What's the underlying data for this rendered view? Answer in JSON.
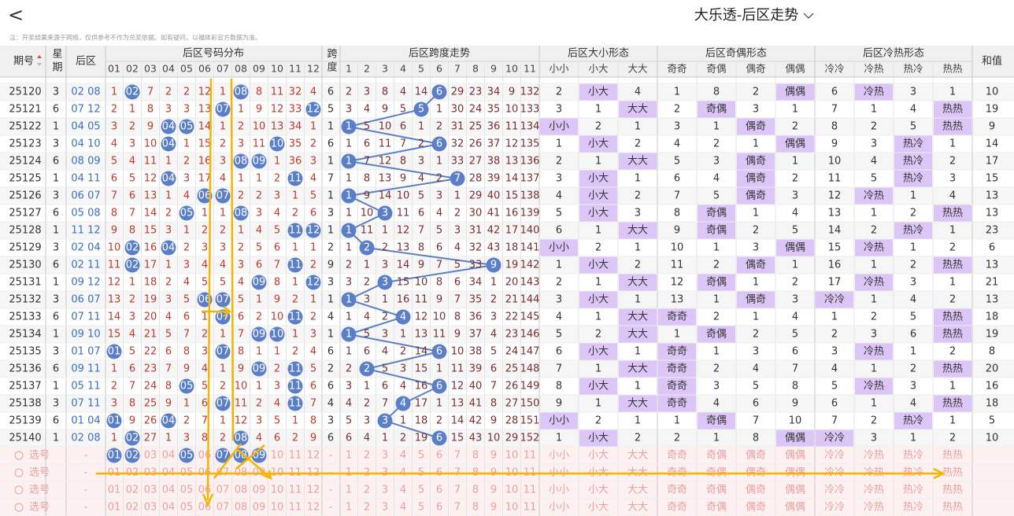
{
  "header": {
    "back": "<",
    "title": "大乐透-后区走势",
    "note": "注：开奖结果来源于网络，仅供参考不作为兑奖依据。如有疑问，以福体彩官方数据为准。"
  },
  "table": {
    "columns": {
      "issue": "期号",
      "weekday": "星期",
      "back": "后区",
      "dist": "后区号码分布",
      "span": "跨度",
      "span_trend": "后区跨度走势",
      "size": "后区大小形态",
      "oe": "后区奇偶形态",
      "ch": "后区冷热形态",
      "sum": "和值"
    },
    "num_labels": [
      "01",
      "02",
      "03",
      "04",
      "05",
      "06",
      "07",
      "08",
      "09",
      "10",
      "11",
      "12"
    ],
    "span_labels": [
      "1",
      "2",
      "3",
      "4",
      "5",
      "6",
      "7",
      "8",
      "9",
      "10",
      "11"
    ],
    "size_labels": [
      "小小",
      "小大",
      "大大"
    ],
    "oe_labels": [
      "奇奇",
      "奇偶",
      "偶奇",
      "偶偶"
    ],
    "ch_labels": [
      "冷冷",
      "冷热",
      "热冷",
      "热热"
    ],
    "rows": [
      {
        "issue": "25120",
        "weekday": "3",
        "back": "02 08",
        "nums": [
          "1",
          "02",
          "7",
          "2",
          "2",
          "12",
          "1",
          "08",
          "8",
          "11",
          "32",
          "4"
        ],
        "span": "6",
        "spans": [
          "2",
          "3",
          "8",
          "4",
          "14",
          "6",
          "29",
          "23",
          "34",
          "9",
          "132"
        ],
        "size": [
          "2",
          "小大",
          "4"
        ],
        "oe": [
          "1",
          "8",
          "2",
          "偶偶"
        ],
        "ch": [
          "6",
          "冷热",
          "3",
          "1"
        ],
        "sum": "10"
      },
      {
        "issue": "25121",
        "weekday": "6",
        "back": "07 12",
        "nums": [
          "2",
          "1",
          "8",
          "3",
          "3",
          "13",
          "07",
          "1",
          "9",
          "12",
          "33",
          "12"
        ],
        "span": "5",
        "spans": [
          "3",
          "4",
          "9",
          "5",
          "5",
          "1",
          "30",
          "24",
          "35",
          "10",
          "133"
        ],
        "size": [
          "3",
          "1",
          "大大"
        ],
        "oe": [
          "2",
          "奇偶",
          "3",
          "1"
        ],
        "ch": [
          "7",
          "1",
          "4",
          "热热"
        ],
        "sum": "19"
      },
      {
        "issue": "25122",
        "weekday": "1",
        "back": "04 05",
        "nums": [
          "3",
          "2",
          "9",
          "04",
          "05",
          "14",
          "1",
          "2",
          "10",
          "13",
          "34",
          "1"
        ],
        "span": "1",
        "spans": [
          "1",
          "5",
          "10",
          "6",
          "1",
          "2",
          "31",
          "25",
          "36",
          "11",
          "134"
        ],
        "size": [
          "小小",
          "2",
          "1"
        ],
        "oe": [
          "3",
          "1",
          "偶奇",
          "2"
        ],
        "ch": [
          "8",
          "2",
          "5",
          "热热"
        ],
        "sum": "9"
      },
      {
        "issue": "25123",
        "weekday": "3",
        "back": "04 10",
        "nums": [
          "4",
          "3",
          "10",
          "04",
          "1",
          "15",
          "2",
          "3",
          "11",
          "10",
          "35",
          "2"
        ],
        "span": "6",
        "spans": [
          "1",
          "6",
          "11",
          "7",
          "2",
          "6",
          "32",
          "26",
          "37",
          "12",
          "135"
        ],
        "size": [
          "1",
          "小大",
          "2"
        ],
        "oe": [
          "4",
          "2",
          "1",
          "偶偶"
        ],
        "ch": [
          "9",
          "3",
          "热冷",
          "1"
        ],
        "sum": "14"
      },
      {
        "issue": "25124",
        "weekday": "6",
        "back": "08 09",
        "nums": [
          "5",
          "4",
          "11",
          "1",
          "2",
          "16",
          "3",
          "08",
          "09",
          "1",
          "36",
          "3"
        ],
        "span": "1",
        "spans": [
          "1",
          "7",
          "12",
          "8",
          "3",
          "1",
          "33",
          "27",
          "38",
          "13",
          "136"
        ],
        "size": [
          "2",
          "1",
          "大大"
        ],
        "oe": [
          "5",
          "3",
          "偶奇",
          "1"
        ],
        "ch": [
          "10",
          "4",
          "热冷",
          "2"
        ],
        "sum": "17"
      },
      {
        "issue": "25125",
        "weekday": "1",
        "back": "04 11",
        "nums": [
          "6",
          "5",
          "12",
          "04",
          "3",
          "17",
          "4",
          "1",
          "1",
          "2",
          "11",
          "4"
        ],
        "span": "7",
        "spans": [
          "1",
          "8",
          "13",
          "9",
          "4",
          "2",
          "7",
          "28",
          "39",
          "14",
          "137"
        ],
        "size": [
          "3",
          "小大",
          "1"
        ],
        "oe": [
          "6",
          "4",
          "偶奇",
          "2"
        ],
        "ch": [
          "11",
          "5",
          "热冷",
          "3"
        ],
        "sum": "15"
      },
      {
        "issue": "25126",
        "weekday": "3",
        "back": "06 07",
        "nums": [
          "7",
          "6",
          "13",
          "1",
          "4",
          "06",
          "07",
          "2",
          "2",
          "3",
          "1",
          "5"
        ],
        "span": "1",
        "spans": [
          "1",
          "9",
          "14",
          "10",
          "5",
          "3",
          "1",
          "29",
          "40",
          "15",
          "138"
        ],
        "size": [
          "4",
          "小大",
          "2"
        ],
        "oe": [
          "7",
          "5",
          "偶奇",
          "3"
        ],
        "ch": [
          "12",
          "冷热",
          "1",
          "4"
        ],
        "sum": "13"
      },
      {
        "issue": "25127",
        "weekday": "6",
        "back": "05 08",
        "nums": [
          "8",
          "7",
          "14",
          "2",
          "05",
          "1",
          "1",
          "08",
          "3",
          "4",
          "2",
          "6"
        ],
        "span": "3",
        "spans": [
          "1",
          "10",
          "3",
          "11",
          "6",
          "4",
          "2",
          "30",
          "41",
          "16",
          "139"
        ],
        "size": [
          "5",
          "小大",
          "3"
        ],
        "oe": [
          "8",
          "奇偶",
          "1",
          "4"
        ],
        "ch": [
          "13",
          "1",
          "2",
          "热热"
        ],
        "sum": "13"
      },
      {
        "issue": "25128",
        "weekday": "1",
        "back": "11 12",
        "nums": [
          "9",
          "8",
          "15",
          "3",
          "1",
          "2",
          "2",
          "1",
          "4",
          "5",
          "11",
          "12"
        ],
        "span": "1",
        "spans": [
          "1",
          "11",
          "1",
          "12",
          "7",
          "5",
          "3",
          "31",
          "42",
          "17",
          "140"
        ],
        "size": [
          "6",
          "1",
          "大大"
        ],
        "oe": [
          "9",
          "奇偶",
          "2",
          "5"
        ],
        "ch": [
          "14",
          "2",
          "热冷",
          "1"
        ],
        "sum": "23"
      },
      {
        "issue": "25129",
        "weekday": "3",
        "back": "02 04",
        "nums": [
          "10",
          "02",
          "16",
          "04",
          "2",
          "3",
          "3",
          "2",
          "5",
          "6",
          "1",
          "1"
        ],
        "span": "2",
        "spans": [
          "1",
          "2",
          "2",
          "13",
          "8",
          "6",
          "4",
          "32",
          "43",
          "18",
          "141"
        ],
        "size": [
          "小小",
          "2",
          "1"
        ],
        "oe": [
          "10",
          "1",
          "3",
          "偶偶"
        ],
        "ch": [
          "15",
          "冷热",
          "1",
          "2"
        ],
        "sum": "6"
      },
      {
        "issue": "25130",
        "weekday": "6",
        "back": "02 11",
        "nums": [
          "11",
          "02",
          "17",
          "1",
          "3",
          "4",
          "4",
          "3",
          "6",
          "7",
          "11",
          "2"
        ],
        "span": "9",
        "spans": [
          "2",
          "1",
          "3",
          "14",
          "9",
          "7",
          "5",
          "33",
          "9",
          "19",
          "142"
        ],
        "size": [
          "1",
          "小大",
          "2"
        ],
        "oe": [
          "11",
          "2",
          "偶奇",
          "1"
        ],
        "ch": [
          "16",
          "1",
          "2",
          "热热"
        ],
        "sum": "13"
      },
      {
        "issue": "25131",
        "weekday": "1",
        "back": "09 12",
        "nums": [
          "12",
          "1",
          "18",
          "2",
          "4",
          "5",
          "5",
          "4",
          "09",
          "8",
          "1",
          "12"
        ],
        "span": "3",
        "spans": [
          "3",
          "2",
          "3",
          "15",
          "10",
          "8",
          "6",
          "34",
          "1",
          "20",
          "143"
        ],
        "size": [
          "2",
          "1",
          "大大"
        ],
        "oe": [
          "12",
          "奇偶",
          "1",
          "2"
        ],
        "ch": [
          "17",
          "冷热",
          "3",
          "1"
        ],
        "sum": "21"
      },
      {
        "issue": "25132",
        "weekday": "3",
        "back": "06 07",
        "nums": [
          "13",
          "2",
          "19",
          "3",
          "5",
          "06",
          "07",
          "5",
          "1",
          "9",
          "2",
          "1"
        ],
        "span": "1",
        "spans": [
          "1",
          "3",
          "1",
          "16",
          "11",
          "9",
          "7",
          "35",
          "2",
          "21",
          "144"
        ],
        "size": [
          "3",
          "小大",
          "1"
        ],
        "oe": [
          "13",
          "1",
          "偶奇",
          "3"
        ],
        "ch": [
          "冷冷",
          "1",
          "4",
          "2"
        ],
        "sum": "13"
      },
      {
        "issue": "25133",
        "weekday": "6",
        "back": "07 11",
        "nums": [
          "14",
          "3",
          "20",
          "4",
          "6",
          "1",
          "07",
          "6",
          "2",
          "10",
          "11",
          "2"
        ],
        "span": "4",
        "spans": [
          "1",
          "4",
          "2",
          "4",
          "12",
          "10",
          "8",
          "36",
          "3",
          "22",
          "145"
        ],
        "size": [
          "4",
          "1",
          "大大"
        ],
        "oe": [
          "奇奇",
          "2",
          "1",
          "4"
        ],
        "ch": [
          "1",
          "2",
          "5",
          "热热"
        ],
        "sum": "18"
      },
      {
        "issue": "25134",
        "weekday": "1",
        "back": "09 10",
        "nums": [
          "15",
          "4",
          "21",
          "5",
          "7",
          "2",
          "1",
          "7",
          "09",
          "10",
          "1",
          "3"
        ],
        "span": "1",
        "spans": [
          "1",
          "5",
          "3",
          "1",
          "13",
          "11",
          "9",
          "37",
          "4",
          "23",
          "146"
        ],
        "size": [
          "5",
          "2",
          "大大"
        ],
        "oe": [
          "1",
          "奇偶",
          "2",
          "5"
        ],
        "ch": [
          "2",
          "3",
          "6",
          "热热"
        ],
        "sum": "19"
      },
      {
        "issue": "25135",
        "weekday": "3",
        "back": "01 07",
        "nums": [
          "01",
          "5",
          "22",
          "6",
          "8",
          "3",
          "07",
          "8",
          "1",
          "1",
          "2",
          "4"
        ],
        "span": "6",
        "spans": [
          "1",
          "6",
          "4",
          "2",
          "14",
          "6",
          "10",
          "38",
          "5",
          "24",
          "147"
        ],
        "size": [
          "6",
          "小大",
          "1"
        ],
        "oe": [
          "奇奇",
          "1",
          "3",
          "6"
        ],
        "ch": [
          "3",
          "冷热",
          "1",
          "2"
        ],
        "sum": "8"
      },
      {
        "issue": "25136",
        "weekday": "6",
        "back": "09 11",
        "nums": [
          "1",
          "6",
          "23",
          "7",
          "9",
          "4",
          "1",
          "9",
          "09",
          "2",
          "11",
          "5"
        ],
        "span": "2",
        "spans": [
          "2",
          "2",
          "5",
          "3",
          "15",
          "1",
          "11",
          "39",
          "6",
          "25",
          "148"
        ],
        "size": [
          "7",
          "1",
          "大大"
        ],
        "oe": [
          "奇奇",
          "2",
          "4",
          "7"
        ],
        "ch": [
          "4",
          "1",
          "2",
          "热热"
        ],
        "sum": "20"
      },
      {
        "issue": "25137",
        "weekday": "1",
        "back": "05 11",
        "nums": [
          "2",
          "7",
          "24",
          "8",
          "05",
          "5",
          "2",
          "10",
          "1",
          "3",
          "11",
          "6"
        ],
        "span": "6",
        "spans": [
          "3",
          "1",
          "6",
          "4",
          "16",
          "6",
          "12",
          "40",
          "7",
          "26",
          "149"
        ],
        "size": [
          "8",
          "小大",
          "1"
        ],
        "oe": [
          "奇奇",
          "3",
          "5",
          "8"
        ],
        "ch": [
          "5",
          "冷热",
          "3",
          "1"
        ],
        "sum": "16"
      },
      {
        "issue": "25138",
        "weekday": "3",
        "back": "07 11",
        "nums": [
          "3",
          "8",
          "25",
          "9",
          "1",
          "6",
          "07",
          "11",
          "2",
          "4",
          "11",
          "7"
        ],
        "span": "4",
        "spans": [
          "4",
          "2",
          "7",
          "4",
          "17",
          "1",
          "13",
          "41",
          "8",
          "27",
          "150"
        ],
        "size": [
          "9",
          "1",
          "大大"
        ],
        "oe": [
          "奇奇",
          "4",
          "6",
          "9"
        ],
        "ch": [
          "6",
          "1",
          "4",
          "热热"
        ],
        "sum": "18"
      },
      {
        "issue": "25139",
        "weekday": "6",
        "back": "01 04",
        "nums": [
          "01",
          "9",
          "26",
          "04",
          "2",
          "7",
          "1",
          "12",
          "3",
          "5",
          "1",
          "8"
        ],
        "span": "3",
        "spans": [
          "5",
          "3",
          "3",
          "1",
          "18",
          "2",
          "14",
          "42",
          "9",
          "28",
          "151"
        ],
        "size": [
          "小小",
          "2",
          "1"
        ],
        "oe": [
          "1",
          "奇偶",
          "7",
          "10"
        ],
        "ch": [
          "7",
          "2",
          "热冷",
          "1"
        ],
        "sum": "5"
      },
      {
        "issue": "25140",
        "weekday": "1",
        "back": "02 08",
        "nums": [
          "1",
          "02",
          "27",
          "1",
          "3",
          "8",
          "2",
          "08",
          "4",
          "6",
          "2",
          "9"
        ],
        "span": "6",
        "spans": [
          "6",
          "4",
          "1",
          "2",
          "19",
          "6",
          "15",
          "43",
          "10",
          "29",
          "152"
        ],
        "size": [
          "1",
          "小大",
          "2"
        ],
        "oe": [
          "2",
          "1",
          "8",
          "偶偶"
        ],
        "ch": [
          "冷冷",
          "3",
          "1",
          "2"
        ],
        "sum": "10"
      }
    ],
    "select": {
      "label": "选号",
      "dash": "-",
      "picked": [
        "01",
        "02",
        "05",
        "07",
        "08",
        "09"
      ]
    }
  }
}
